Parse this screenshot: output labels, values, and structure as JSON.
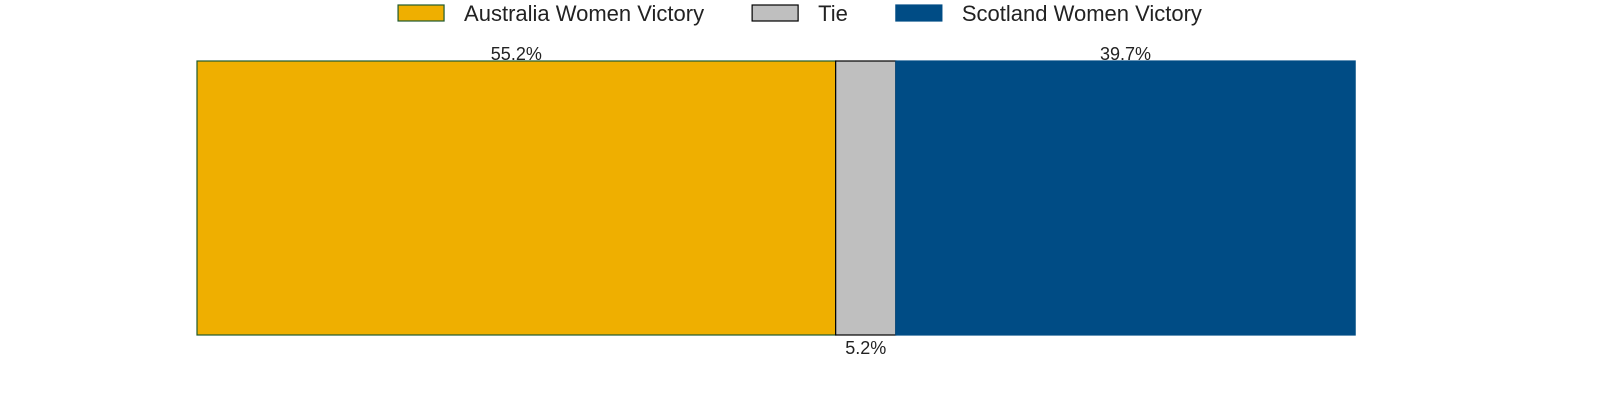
{
  "chart_data": {
    "type": "bar",
    "orientation": "horizontal-stacked",
    "unit": "%",
    "xlim": [
      0,
      100
    ],
    "legend_placement": "top-center",
    "grid": false,
    "series": [
      {
        "name": "Australia Women Victory",
        "value": 55.2,
        "label": "55.2%",
        "color": "#EFAF00",
        "edge": "#1E5A2E",
        "label_position": "top"
      },
      {
        "name": "Tie",
        "value": 5.2,
        "label": "5.2%",
        "color": "#BFBFBF",
        "edge": "#000000",
        "label_position": "bottom"
      },
      {
        "name": "Scotland Women Victory",
        "value": 39.7,
        "label": "39.7%",
        "color": "#004C85",
        "edge": "#004C85",
        "label_position": "top"
      }
    ]
  }
}
